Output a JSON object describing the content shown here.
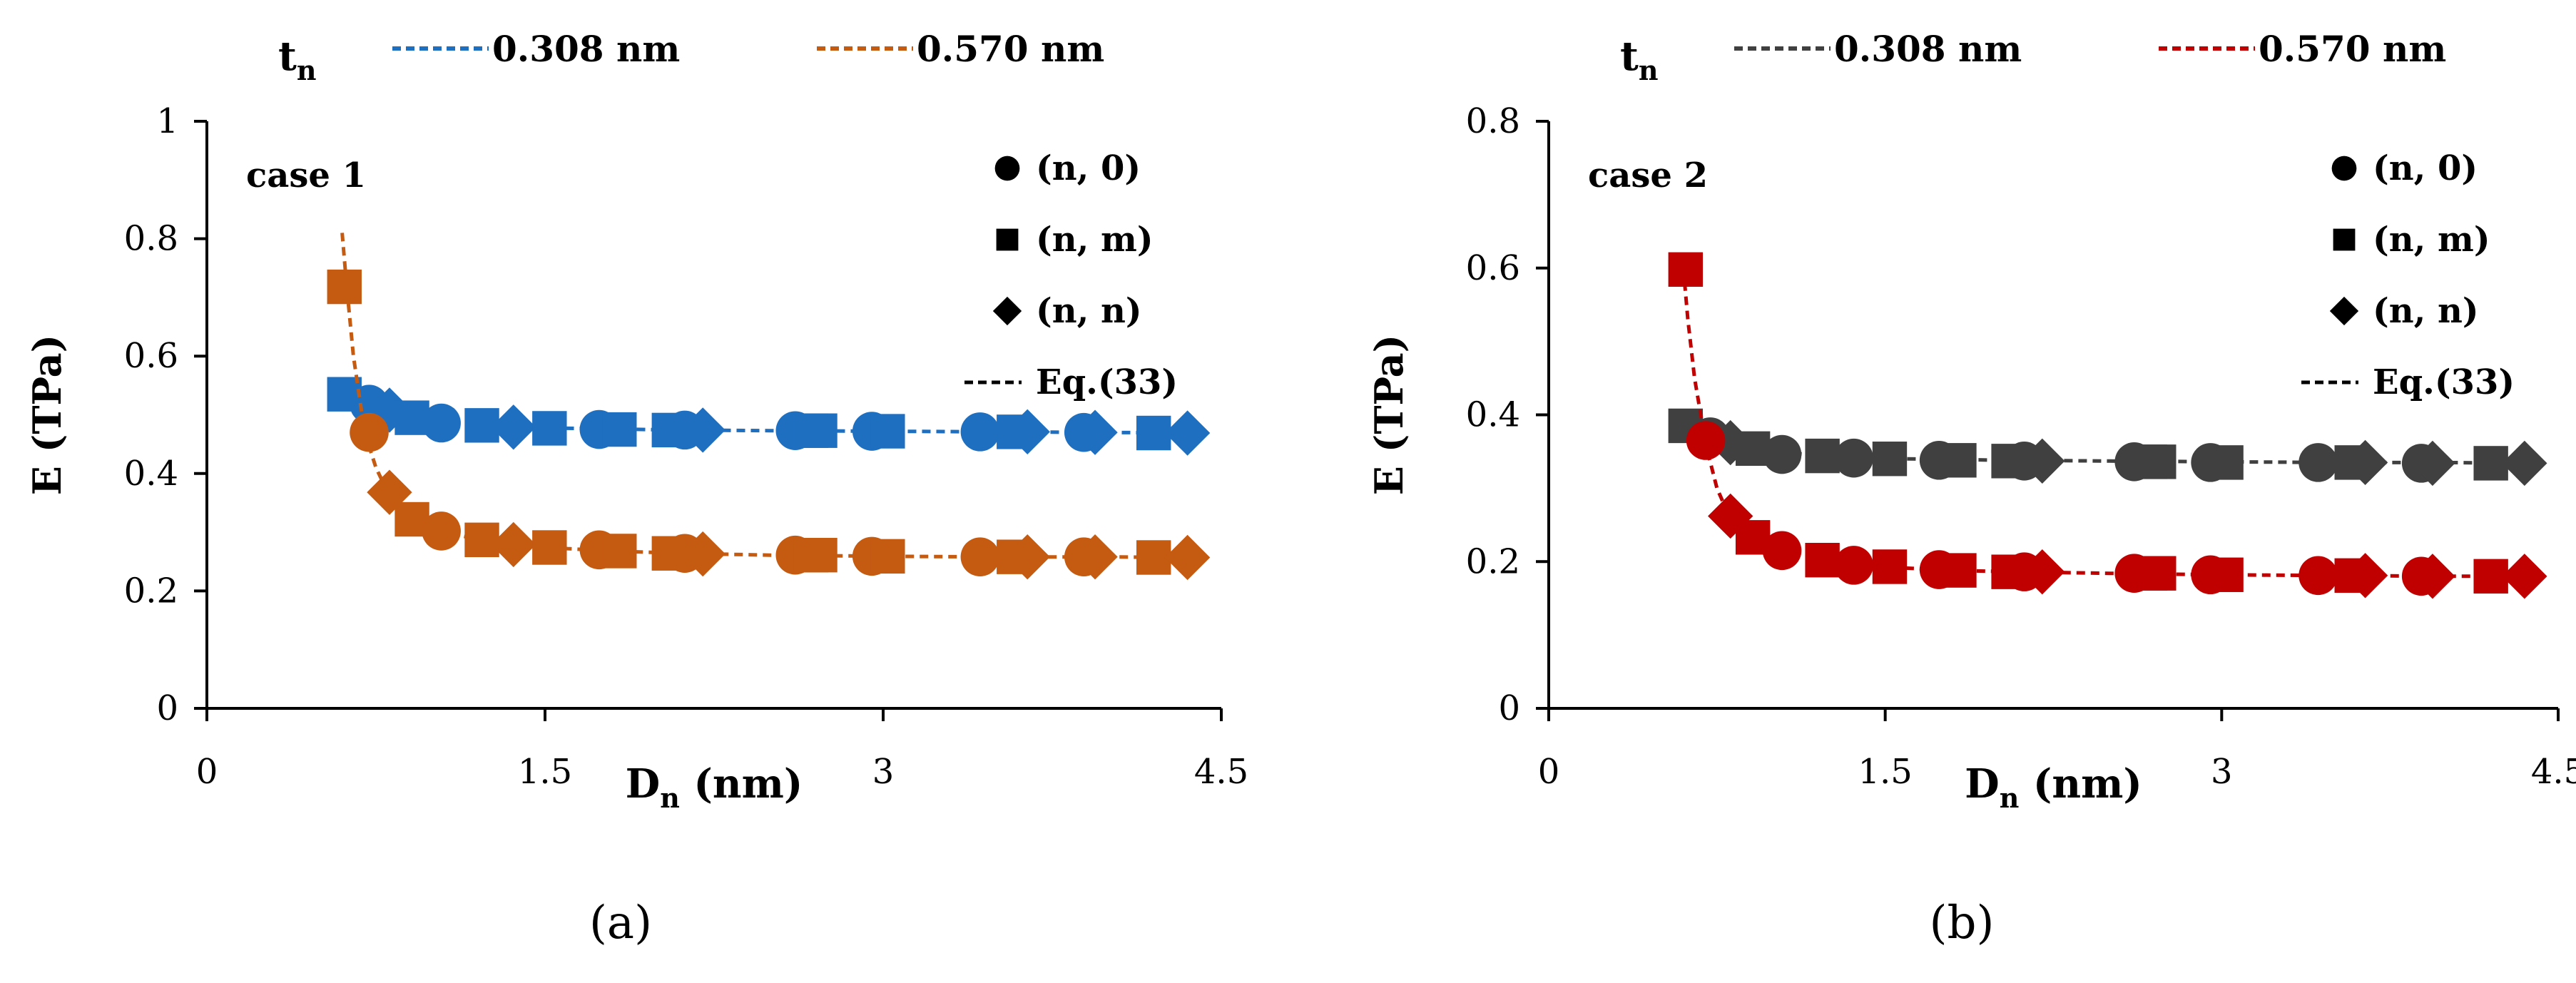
{
  "chart_data": [
    {
      "type": "scatter",
      "panel_label": "(a)",
      "case_label": "case 1",
      "xlabel": {
        "main": "D",
        "sub": "n",
        "unit": " (nm)"
      },
      "ylabel": "E (TPa)",
      "xlim": [
        0,
        4.5
      ],
      "ylim": [
        0,
        1
      ],
      "xticks": [
        "0",
        "1.5",
        "3",
        "4.5"
      ],
      "xtick_values": [
        0,
        1.5,
        3,
        4.5
      ],
      "yticks": [
        "0",
        "0.2",
        "0.4",
        "0.6",
        "0.8",
        "1"
      ],
      "ytick_values": [
        0,
        0.2,
        0.4,
        0.6,
        0.8,
        1
      ],
      "legend_top": {
        "title_main": "t",
        "title_sub": "n",
        "entries": [
          {
            "label": "0.308 nm",
            "color": "#1f6fc1"
          },
          {
            "label": "0.570 nm",
            "color": "#c55a11"
          }
        ]
      },
      "legend_markers": [
        {
          "label": "(n, 0)",
          "marker": "circle"
        },
        {
          "label": "(n, m)",
          "marker": "square"
        },
        {
          "label": "(n, n)",
          "marker": "diamond"
        },
        {
          "label": "Eq.(33)",
          "marker": "dashed-line"
        }
      ],
      "series": [
        {
          "name": "0.308 nm",
          "color": "#1f6fc1",
          "curve_D": [
            0.6,
            0.7,
            0.8,
            0.9,
            1.0,
            1.2,
            1.4,
            1.6,
            1.8,
            2.1,
            2.5,
            3.0,
            3.5,
            4.0,
            4.35
          ],
          "curve_E": [
            0.538,
            0.52,
            0.506,
            0.497,
            0.49,
            0.483,
            0.479,
            0.477,
            0.476,
            0.474,
            0.473,
            0.472,
            0.471,
            0.47,
            0.469
          ],
          "points": [
            {
              "x": 0.61,
              "y": 0.535,
              "marker": "square"
            },
            {
              "x": 0.72,
              "y": 0.518,
              "marker": "circle"
            },
            {
              "x": 0.81,
              "y": 0.508,
              "marker": "diamond"
            },
            {
              "x": 0.91,
              "y": 0.495,
              "marker": "square"
            },
            {
              "x": 1.04,
              "y": 0.486,
              "marker": "circle"
            },
            {
              "x": 1.22,
              "y": 0.482,
              "marker": "square"
            },
            {
              "x": 1.36,
              "y": 0.479,
              "marker": "diamond"
            },
            {
              "x": 1.52,
              "y": 0.477,
              "marker": "square"
            },
            {
              "x": 1.74,
              "y": 0.475,
              "marker": "circle"
            },
            {
              "x": 1.83,
              "y": 0.475,
              "marker": "square"
            },
            {
              "x": 2.05,
              "y": 0.474,
              "marker": "square"
            },
            {
              "x": 2.12,
              "y": 0.474,
              "marker": "circle"
            },
            {
              "x": 2.2,
              "y": 0.474,
              "marker": "diamond"
            },
            {
              "x": 2.61,
              "y": 0.473,
              "marker": "circle"
            },
            {
              "x": 2.68,
              "y": 0.473,
              "marker": "square"
            },
            {
              "x": 2.72,
              "y": 0.473,
              "marker": "square"
            },
            {
              "x": 2.95,
              "y": 0.472,
              "marker": "circle"
            },
            {
              "x": 3.02,
              "y": 0.472,
              "marker": "square"
            },
            {
              "x": 3.43,
              "y": 0.471,
              "marker": "circle"
            },
            {
              "x": 3.58,
              "y": 0.471,
              "marker": "square"
            },
            {
              "x": 3.64,
              "y": 0.471,
              "marker": "diamond"
            },
            {
              "x": 3.89,
              "y": 0.47,
              "marker": "circle"
            },
            {
              "x": 3.94,
              "y": 0.47,
              "marker": "diamond"
            },
            {
              "x": 4.2,
              "y": 0.469,
              "marker": "square"
            },
            {
              "x": 4.35,
              "y": 0.469,
              "marker": "diamond"
            }
          ]
        },
        {
          "name": "0.570 nm",
          "color": "#c55a11",
          "curve_D": [
            0.6,
            0.62,
            0.65,
            0.7,
            0.75,
            0.8,
            0.9,
            1.0,
            1.2,
            1.4,
            1.6,
            1.8,
            2.1,
            2.5,
            3.0,
            3.5,
            4.0,
            4.35
          ],
          "curve_E": [
            0.81,
            0.72,
            0.6,
            0.47,
            0.41,
            0.37,
            0.325,
            0.305,
            0.288,
            0.278,
            0.272,
            0.268,
            0.264,
            0.261,
            0.259,
            0.258,
            0.258,
            0.257
          ],
          "points": [
            {
              "x": 0.61,
              "y": 0.718,
              "marker": "square"
            },
            {
              "x": 0.72,
              "y": 0.47,
              "marker": "circle"
            },
            {
              "x": 0.81,
              "y": 0.368,
              "marker": "diamond"
            },
            {
              "x": 0.91,
              "y": 0.322,
              "marker": "square"
            },
            {
              "x": 1.04,
              "y": 0.302,
              "marker": "circle"
            },
            {
              "x": 1.22,
              "y": 0.287,
              "marker": "square"
            },
            {
              "x": 1.36,
              "y": 0.279,
              "marker": "diamond"
            },
            {
              "x": 1.52,
              "y": 0.274,
              "marker": "square"
            },
            {
              "x": 1.74,
              "y": 0.27,
              "marker": "circle"
            },
            {
              "x": 1.83,
              "y": 0.268,
              "marker": "square"
            },
            {
              "x": 2.05,
              "y": 0.264,
              "marker": "square"
            },
            {
              "x": 2.12,
              "y": 0.264,
              "marker": "circle"
            },
            {
              "x": 2.2,
              "y": 0.263,
              "marker": "diamond"
            },
            {
              "x": 2.61,
              "y": 0.261,
              "marker": "circle"
            },
            {
              "x": 2.68,
              "y": 0.261,
              "marker": "square"
            },
            {
              "x": 2.72,
              "y": 0.261,
              "marker": "square"
            },
            {
              "x": 2.95,
              "y": 0.259,
              "marker": "circle"
            },
            {
              "x": 3.02,
              "y": 0.259,
              "marker": "square"
            },
            {
              "x": 3.43,
              "y": 0.258,
              "marker": "circle"
            },
            {
              "x": 3.58,
              "y": 0.258,
              "marker": "square"
            },
            {
              "x": 3.64,
              "y": 0.258,
              "marker": "diamond"
            },
            {
              "x": 3.89,
              "y": 0.258,
              "marker": "circle"
            },
            {
              "x": 3.94,
              "y": 0.258,
              "marker": "diamond"
            },
            {
              "x": 4.2,
              "y": 0.257,
              "marker": "square"
            },
            {
              "x": 4.35,
              "y": 0.257,
              "marker": "diamond"
            }
          ]
        }
      ]
    },
    {
      "type": "scatter",
      "panel_label": "(b)",
      "case_label": "case 2",
      "xlabel": {
        "main": "D",
        "sub": "n",
        "unit": " (nm)"
      },
      "ylabel": "E (TPa)",
      "xlim": [
        0,
        4.5
      ],
      "ylim": [
        0,
        0.8
      ],
      "xticks": [
        "0",
        "1.5",
        "3",
        "4.5"
      ],
      "xtick_values": [
        0,
        1.5,
        3,
        4.5
      ],
      "yticks": [
        "0",
        "0.2",
        "0.4",
        "0.6",
        "0.8"
      ],
      "ytick_values": [
        0,
        0.2,
        0.4,
        0.6,
        0.8
      ],
      "legend_top": {
        "title_main": "t",
        "title_sub": "n",
        "entries": [
          {
            "label": "0.308 nm",
            "color": "#404040"
          },
          {
            "label": "0.570 nm",
            "color": "#c00000"
          }
        ]
      },
      "legend_markers": [
        {
          "label": "(n, 0)",
          "marker": "circle"
        },
        {
          "label": "(n, m)",
          "marker": "square"
        },
        {
          "label": "(n, n)",
          "marker": "diamond"
        },
        {
          "label": "Eq.(33)",
          "marker": "dashed-line"
        }
      ],
      "series": [
        {
          "name": "0.308 nm",
          "color": "#404040",
          "curve_D": [
            0.6,
            0.7,
            0.8,
            0.9,
            1.0,
            1.2,
            1.4,
            1.6,
            1.8,
            2.1,
            2.5,
            3.0,
            3.5,
            4.0,
            4.35
          ],
          "curve_E": [
            0.386,
            0.372,
            0.363,
            0.355,
            0.35,
            0.345,
            0.342,
            0.34,
            0.339,
            0.338,
            0.337,
            0.336,
            0.335,
            0.335,
            0.334
          ],
          "points": [
            {
              "x": 0.61,
              "y": 0.385,
              "marker": "square"
            },
            {
              "x": 0.72,
              "y": 0.37,
              "marker": "circle"
            },
            {
              "x": 0.81,
              "y": 0.362,
              "marker": "diamond"
            },
            {
              "x": 0.91,
              "y": 0.354,
              "marker": "square"
            },
            {
              "x": 1.04,
              "y": 0.346,
              "marker": "circle"
            },
            {
              "x": 1.22,
              "y": 0.344,
              "marker": "square"
            },
            {
              "x": 1.36,
              "y": 0.341,
              "marker": "circle"
            },
            {
              "x": 1.52,
              "y": 0.34,
              "marker": "square"
            },
            {
              "x": 1.74,
              "y": 0.338,
              "marker": "circle"
            },
            {
              "x": 1.83,
              "y": 0.338,
              "marker": "square"
            },
            {
              "x": 2.05,
              "y": 0.337,
              "marker": "square"
            },
            {
              "x": 2.12,
              "y": 0.337,
              "marker": "circle"
            },
            {
              "x": 2.2,
              "y": 0.337,
              "marker": "diamond"
            },
            {
              "x": 2.61,
              "y": 0.336,
              "marker": "circle"
            },
            {
              "x": 2.68,
              "y": 0.336,
              "marker": "square"
            },
            {
              "x": 2.72,
              "y": 0.336,
              "marker": "square"
            },
            {
              "x": 2.95,
              "y": 0.335,
              "marker": "circle"
            },
            {
              "x": 3.02,
              "y": 0.335,
              "marker": "square"
            },
            {
              "x": 3.43,
              "y": 0.335,
              "marker": "circle"
            },
            {
              "x": 3.58,
              "y": 0.335,
              "marker": "square"
            },
            {
              "x": 3.64,
              "y": 0.335,
              "marker": "diamond"
            },
            {
              "x": 3.89,
              "y": 0.334,
              "marker": "circle"
            },
            {
              "x": 3.94,
              "y": 0.334,
              "marker": "diamond"
            },
            {
              "x": 4.2,
              "y": 0.334,
              "marker": "square"
            },
            {
              "x": 4.35,
              "y": 0.334,
              "marker": "diamond"
            }
          ]
        },
        {
          "name": "0.570 nm",
          "color": "#c00000",
          "curve_D": [
            0.6,
            0.62,
            0.65,
            0.7,
            0.75,
            0.8,
            0.9,
            1.0,
            1.2,
            1.4,
            1.6,
            1.8,
            2.1,
            2.5,
            3.0,
            3.5,
            4.0,
            4.35
          ],
          "curve_E": [
            0.6,
            0.53,
            0.45,
            0.36,
            0.3,
            0.265,
            0.235,
            0.218,
            0.203,
            0.195,
            0.191,
            0.188,
            0.186,
            0.184,
            0.182,
            0.181,
            0.18,
            0.18
          ],
          "points": [
            {
              "x": 0.61,
              "y": 0.598,
              "marker": "square"
            },
            {
              "x": 0.7,
              "y": 0.365,
              "marker": "circle"
            },
            {
              "x": 0.81,
              "y": 0.262,
              "marker": "diamond"
            },
            {
              "x": 0.91,
              "y": 0.233,
              "marker": "square"
            },
            {
              "x": 1.04,
              "y": 0.215,
              "marker": "circle"
            },
            {
              "x": 1.22,
              "y": 0.202,
              "marker": "square"
            },
            {
              "x": 1.36,
              "y": 0.195,
              "marker": "circle"
            },
            {
              "x": 1.52,
              "y": 0.193,
              "marker": "square"
            },
            {
              "x": 1.74,
              "y": 0.189,
              "marker": "circle"
            },
            {
              "x": 1.83,
              "y": 0.188,
              "marker": "square"
            },
            {
              "x": 2.05,
              "y": 0.186,
              "marker": "square"
            },
            {
              "x": 2.12,
              "y": 0.186,
              "marker": "circle"
            },
            {
              "x": 2.2,
              "y": 0.186,
              "marker": "diamond"
            },
            {
              "x": 2.61,
              "y": 0.184,
              "marker": "circle"
            },
            {
              "x": 2.68,
              "y": 0.184,
              "marker": "square"
            },
            {
              "x": 2.72,
              "y": 0.184,
              "marker": "square"
            },
            {
              "x": 2.95,
              "y": 0.182,
              "marker": "circle"
            },
            {
              "x": 3.02,
              "y": 0.182,
              "marker": "square"
            },
            {
              "x": 3.43,
              "y": 0.181,
              "marker": "circle"
            },
            {
              "x": 3.58,
              "y": 0.181,
              "marker": "square"
            },
            {
              "x": 3.64,
              "y": 0.181,
              "marker": "diamond"
            },
            {
              "x": 3.89,
              "y": 0.18,
              "marker": "circle"
            },
            {
              "x": 3.94,
              "y": 0.18,
              "marker": "diamond"
            },
            {
              "x": 4.2,
              "y": 0.18,
              "marker": "square"
            },
            {
              "x": 4.35,
              "y": 0.18,
              "marker": "diamond"
            }
          ]
        }
      ]
    }
  ]
}
